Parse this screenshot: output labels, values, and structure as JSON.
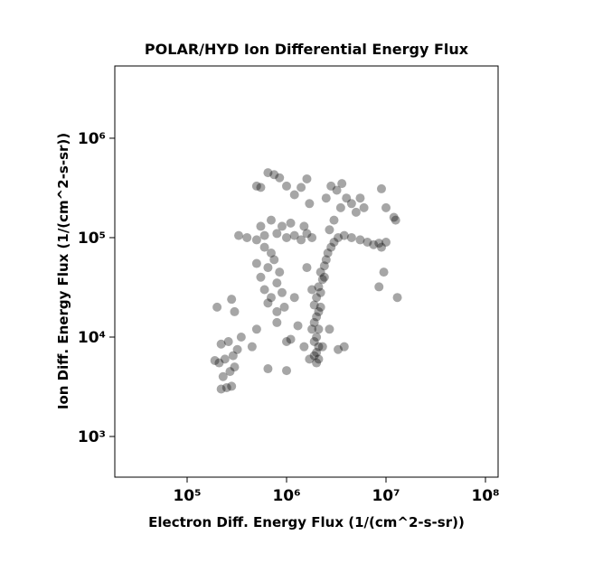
{
  "chart_data": {
    "type": "scatter",
    "title": "POLAR/HYD  Ion Differential Energy Flux",
    "xlabel": "Electron Diff. Energy Flux (1/(cm^2-s-sr))",
    "ylabel": "Ion Diff. Energy Flux (1/(cm^2-s-sr))",
    "xscale": "log",
    "yscale": "log",
    "color": "#000000",
    "xlim": [
      18740,
      134000000
    ],
    "ylim": [
      390,
      5330000
    ],
    "xticks": [
      {
        "value": 100000,
        "label": "10⁵"
      },
      {
        "value": 1000000,
        "label": "10⁶"
      },
      {
        "value": 10000000,
        "label": "10⁷"
      },
      {
        "value": 100000000,
        "label": "10⁸"
      }
    ],
    "yticks": [
      {
        "value": 1000,
        "label": "10³"
      },
      {
        "value": 10000,
        "label": "10⁴"
      },
      {
        "value": 100000,
        "label": "10⁵"
      },
      {
        "value": 1000000,
        "label": "10⁶"
      }
    ],
    "x": [
      2000000.0,
      2100000.0,
      1900000.0,
      2000000.0,
      2100000.0,
      1900000.0,
      2000000.0,
      2100000.0,
      1900000.0,
      2000000.0,
      2100000.0,
      1900000.0,
      2000000.0,
      2200000.0,
      2100000.0,
      2300000.0,
      2200000.0,
      2400000.0,
      2500000.0,
      2600000.0,
      2800000.0,
      3000000.0,
      3300000.0,
      3800000.0,
      4500000.0,
      5500000.0,
      6500000.0,
      7500000.0,
      8500000.0,
      3000000.0,
      3500000.0,
      4000000.0,
      3200000.0,
      4500000.0,
      5000000.0,
      5500000.0,
      6000000.0,
      2700000.0,
      2300000.0,
      1800000.0,
      2200000.0,
      1800000.0,
      2400000.0,
      1700000.0,
      9000000.0,
      2500000.0,
      2800000.0,
      3600000.0,
      600000.0,
      700000.0,
      800000.0,
      650000.0,
      750000.0,
      550000.0,
      850000.0,
      900000.0,
      700000.0,
      600000.0,
      500000.0,
      950000.0,
      650000.0,
      800000.0,
      400000.0,
      500000.0,
      600000.0,
      800000.0,
      1000000.0,
      1200000.0,
      1400000.0,
      1600000.0,
      1800000.0,
      330000.0,
      900000.0,
      1100000.0,
      1500000.0,
      550000.0,
      700000.0,
      220000.0,
      250000.0,
      280000.0,
      230000.0,
      270000.0,
      300000.0,
      210000.0,
      240000.0,
      290000.0,
      320000.0,
      220000.0,
      260000.0,
      350000.0,
      190000.0,
      200000.0,
      300000.0,
      280000.0,
      450000.0,
      500000.0,
      650000.0,
      1000000.0,
      1000000.0,
      1100000.0,
      1300000.0,
      1500000.0,
      2700000.0,
      3300000.0,
      3800000.0,
      800000.0,
      1200000.0,
      1600000.0,
      650000.0,
      750000.0,
      850000.0,
      500000.0,
      550000.0,
      1400000.0,
      1600000.0,
      1200000.0,
      1700000.0,
      1000000.0,
      10000000.0,
      9000000.0,
      12000000.0,
      12500000.0,
      13000000.0,
      9500000.0,
      8500000.0,
      10000000.0
    ],
    "values": [
      5500,
      6000,
      6500,
      7000,
      8000,
      9000,
      10000,
      12000,
      14000,
      16000,
      18000,
      21000,
      25000,
      28000,
      32000,
      38000,
      45000,
      52000,
      60000,
      70000,
      80000,
      90000,
      100000,
      105000,
      100000,
      95000,
      90000,
      85000,
      88000,
      150000,
      200000,
      250000,
      300000,
      220000,
      180000,
      250000,
      200000,
      120000,
      8000,
      12000,
      20000,
      30000,
      40000,
      6000,
      310000,
      250000,
      330000,
      350000,
      30000,
      25000,
      35000,
      50000,
      60000,
      40000,
      45000,
      28000,
      70000,
      80000,
      55000,
      20000,
      22000,
      18000,
      100000,
      95000,
      105000,
      110000,
      100000,
      105000,
      95000,
      110000,
      100000,
      105000,
      130000,
      140000,
      130000,
      130000,
      150000,
      3000,
      3100,
      3200,
      4000,
      4500,
      5000,
      5500,
      6000,
      6500,
      7500,
      8500,
      9000,
      10000,
      5800,
      20000,
      18000,
      24000,
      8000,
      12000,
      4800,
      4600,
      9000,
      9500,
      13000,
      8000,
      12000,
      7500,
      8000,
      14000,
      25000,
      50000,
      450000,
      430000,
      400000,
      330000,
      320000,
      320000,
      390000,
      270000,
      220000,
      330000,
      90000,
      80000,
      160000,
      150000,
      25000,
      45000,
      32000,
      200000
    ]
  }
}
